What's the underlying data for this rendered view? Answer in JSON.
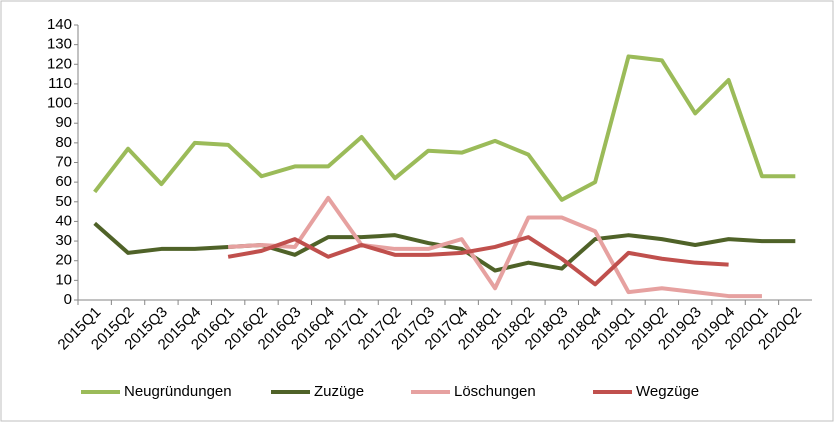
{
  "chart_data": {
    "type": "line",
    "categories": [
      "2015Q1",
      "2015Q2",
      "2015Q3",
      "2015Q4",
      "2016Q1",
      "2016Q2",
      "2016Q3",
      "2016Q4",
      "2017Q1",
      "2017Q2",
      "2017Q3",
      "2017Q4",
      "2018Q1",
      "2018Q2",
      "2018Q3",
      "2018Q4",
      "2019Q1",
      "2019Q2",
      "2019Q3",
      "2019Q4",
      "2020Q1",
      "2020Q2"
    ],
    "series": [
      {
        "name": "Neugründungen",
        "color": "#9bbb59",
        "values": [
          55,
          77,
          59,
          80,
          79,
          63,
          68,
          68,
          83,
          62,
          76,
          75,
          81,
          74,
          51,
          60,
          124,
          122,
          95,
          112,
          63,
          63
        ]
      },
      {
        "name": "Zuzüge",
        "color": "#4f6228",
        "values": [
          39,
          24,
          26,
          26,
          27,
          28,
          23,
          32,
          32,
          33,
          29,
          26,
          15,
          19,
          16,
          31,
          33,
          31,
          28,
          31,
          30,
          30
        ]
      },
      {
        "name": "Löschungen",
        "color": "#e6a1a0",
        "values": [
          null,
          null,
          null,
          null,
          27,
          28,
          27,
          52,
          28,
          26,
          26,
          31,
          6,
          42,
          42,
          35,
          4,
          6,
          4,
          2,
          2,
          null
        ]
      },
      {
        "name": "Wegzüge",
        "color": "#c0504d",
        "values": [
          null,
          null,
          null,
          null,
          22,
          25,
          31,
          22,
          28,
          23,
          23,
          24,
          27,
          32,
          21,
          8,
          24,
          21,
          19,
          18,
          null,
          null
        ]
      }
    ],
    "ylim": [
      0,
      140
    ],
    "yticks": [
      0,
      10,
      20,
      30,
      40,
      50,
      60,
      70,
      80,
      90,
      100,
      110,
      120,
      130,
      140
    ],
    "grid": false,
    "legend": "bottom"
  }
}
